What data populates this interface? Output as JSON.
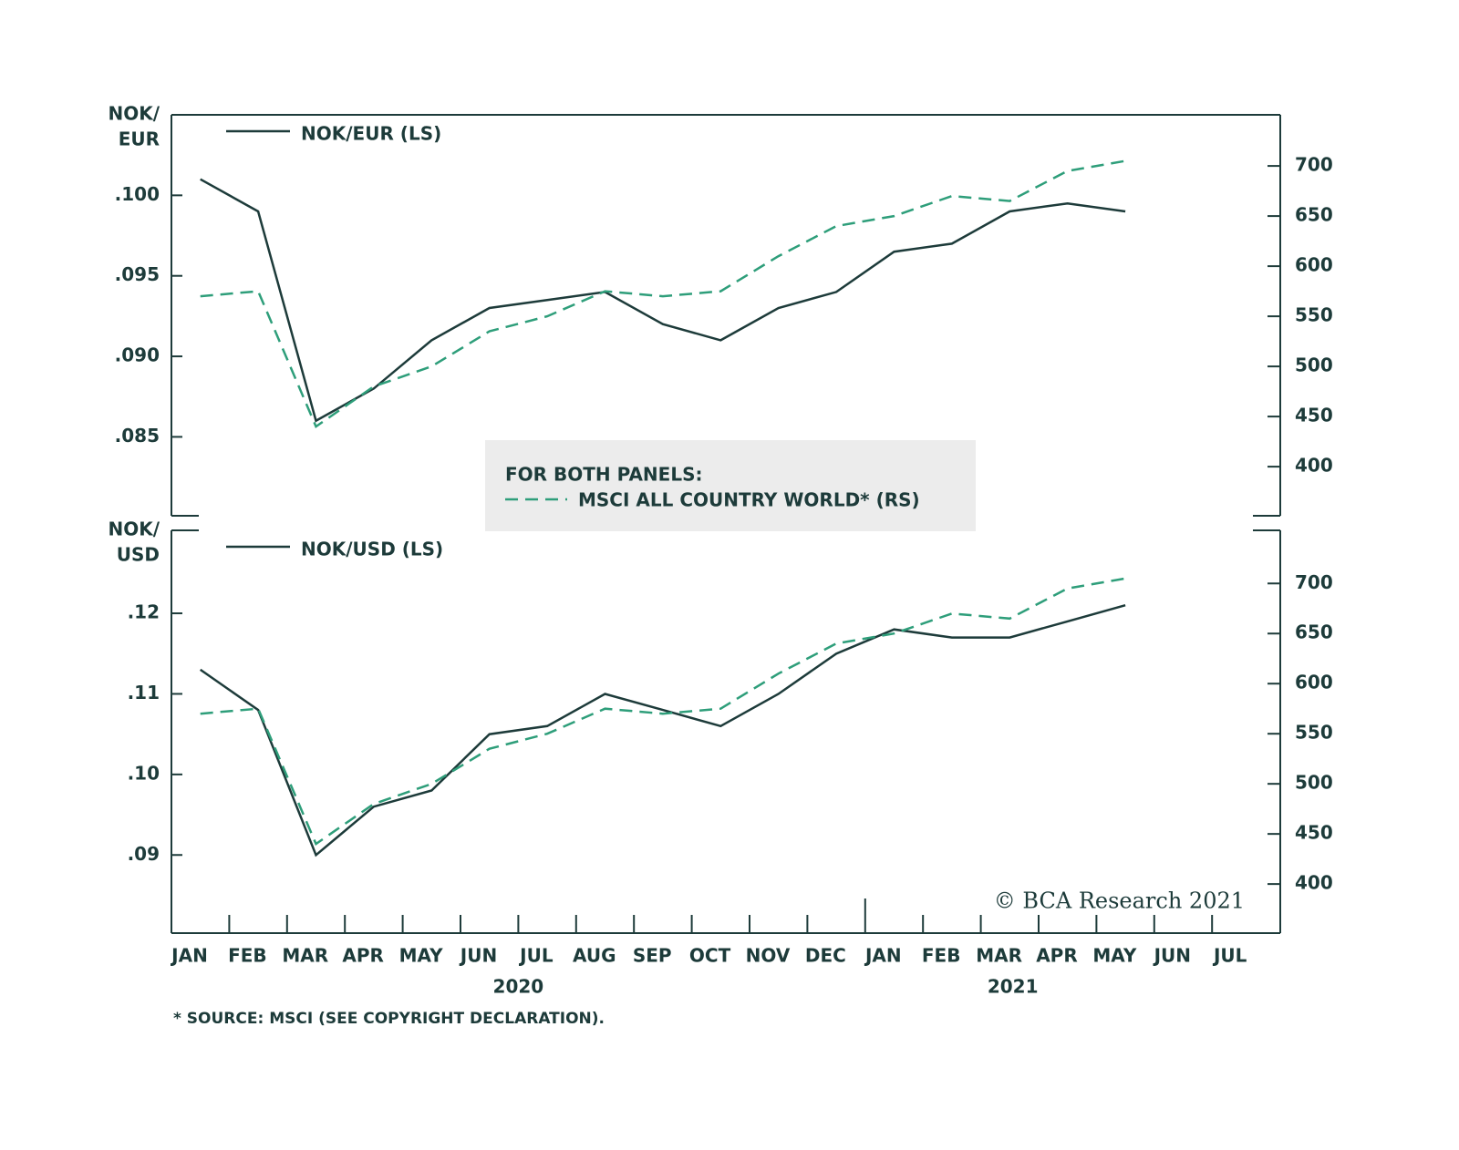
{
  "chart_data": [
    {
      "type": "line",
      "y_label": [
        "NOK/",
        "EUR"
      ],
      "legend_title": "FOR BOTH PANELS:",
      "ylim": [
        0.0801,
        0.105
      ],
      "yticks": [
        {
          "value": 0.085,
          "label": ".085"
        },
        {
          "value": 0.09,
          "label": ".090"
        },
        {
          "value": 0.095,
          "label": ".095"
        },
        {
          "value": 0.1,
          "label": ".100"
        }
      ],
      "y2lim": [
        351,
        751
      ],
      "y2ticks": [
        400,
        450,
        500,
        550,
        600,
        650,
        700
      ],
      "series": [
        {
          "name": "NOK/EUR (LS)",
          "color": "#1d3b3a",
          "style": "solid",
          "values": [
            0.101,
            0.099,
            0.086,
            0.088,
            0.091,
            0.093,
            0.0935,
            0.094,
            0.092,
            0.091,
            0.093,
            0.094,
            0.0965,
            0.097,
            0.099,
            0.0995,
            0.099,
            null,
            null
          ]
        },
        {
          "name": "MSCI ALL COUNTRY WORLD* (RS)",
          "color": "#2e9e7a",
          "style": "dashed",
          "axis": "y2",
          "values": [
            570,
            575,
            440,
            480,
            500,
            535,
            550,
            575,
            570,
            575,
            610,
            640,
            650,
            670,
            665,
            695,
            705,
            null,
            null
          ]
        }
      ]
    },
    {
      "type": "line",
      "y_label": [
        "NOK/",
        "USD"
      ],
      "ylim": [
        0.0803,
        0.1303
      ],
      "yticks": [
        {
          "value": 0.09,
          "label": ".09"
        },
        {
          "value": 0.1,
          "label": ".10"
        },
        {
          "value": 0.11,
          "label": ".11"
        },
        {
          "value": 0.12,
          "label": ".12"
        }
      ],
      "y2lim": [
        351,
        753
      ],
      "y2ticks": [
        400,
        450,
        500,
        550,
        600,
        650,
        700
      ],
      "categories": [
        "JAN",
        "FEB",
        "MAR",
        "APR",
        "MAY",
        "JUN",
        "JUL",
        "AUG",
        "SEP",
        "OCT",
        "NOV",
        "DEC",
        "JAN",
        "FEB",
        "MAR",
        "APR",
        "MAY",
        "JUN",
        "JUL"
      ],
      "years": [
        "2020",
        "2021"
      ],
      "series": [
        {
          "name": "NOK/USD (LS)",
          "color": "#1d3b3a",
          "style": "solid",
          "values": [
            0.113,
            0.108,
            0.09,
            0.096,
            0.098,
            0.105,
            0.106,
            0.11,
            0.108,
            0.106,
            0.11,
            0.115,
            0.118,
            0.117,
            0.117,
            0.119,
            0.121,
            null,
            null
          ]
        },
        {
          "color": "#2e9e7a",
          "style": "dashed",
          "axis": "y2",
          "values": [
            570,
            575,
            440,
            480,
            500,
            535,
            550,
            575,
            570,
            575,
            610,
            640,
            650,
            670,
            665,
            695,
            705,
            null,
            null
          ]
        }
      ],
      "footnote": "* SOURCE: MSCI (SEE COPYRIGHT DECLARATION).",
      "watermark": "© BCA Research 2021"
    }
  ]
}
